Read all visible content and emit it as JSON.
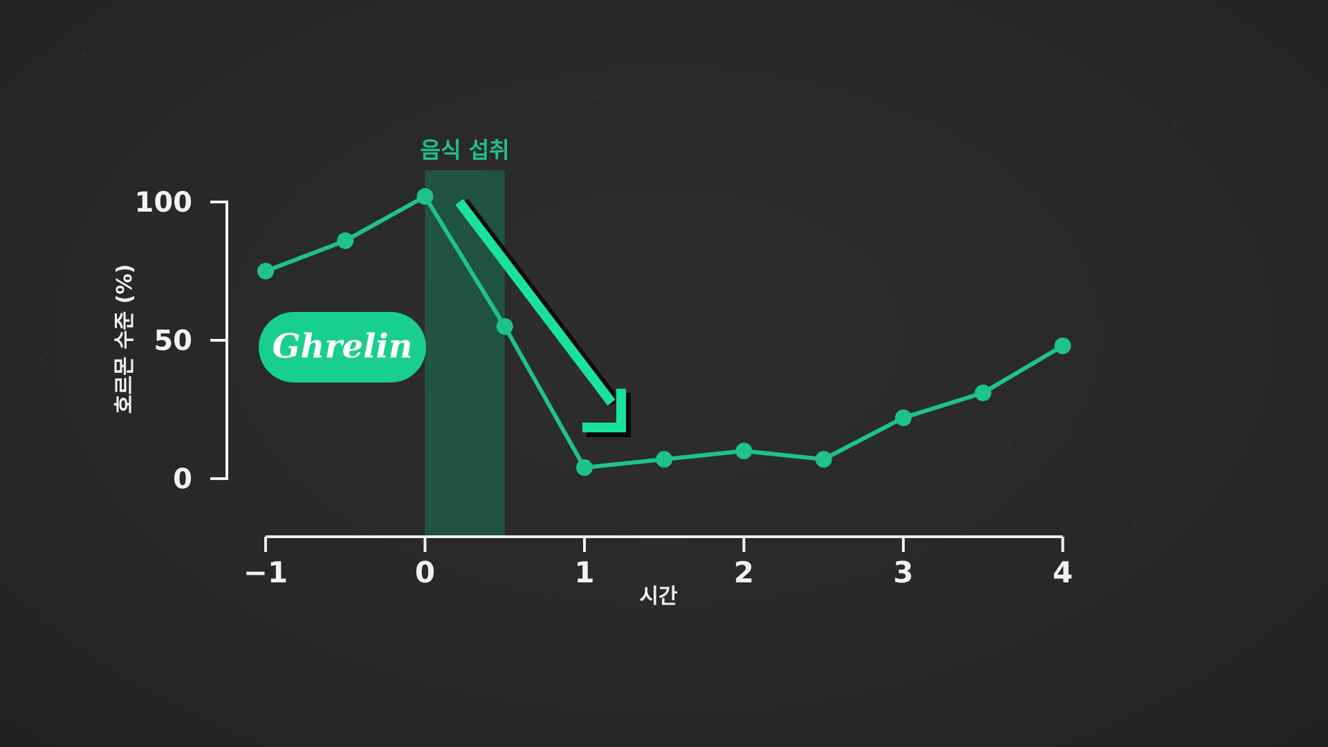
{
  "chart_data": {
    "type": "line",
    "ylabel": "호르몬 수준 (%)",
    "xlabel": "시간",
    "yticks": [
      "0",
      "50",
      "100"
    ],
    "ytick_values": [
      0,
      50,
      100
    ],
    "xticks": [
      "−1",
      "0",
      "1",
      "2",
      "3",
      "4"
    ],
    "xtick_values": [
      -1,
      0,
      1,
      2,
      3,
      4
    ],
    "xlim": [
      -1,
      4
    ],
    "ylim": [
      0,
      100
    ],
    "series": [
      {
        "name": "Ghrelin",
        "x": [
          -1,
          -0.5,
          0,
          0.5,
          1,
          1.5,
          2,
          2.5,
          3,
          3.5,
          4
        ],
        "y": [
          75,
          86,
          102,
          55,
          4,
          7,
          10,
          7,
          22,
          31,
          48
        ]
      }
    ],
    "highlight_region": {
      "label": "음식 섭취",
      "x_start": 0,
      "x_end": 0.5
    },
    "series_badge": "Ghrelin",
    "colors": {
      "line": "#1ec38b",
      "accent": "#19e39a",
      "band": "#1f5a44",
      "axis": "#f2f2f2",
      "background": "#2a2a2a"
    },
    "annotation": "down-arrow"
  }
}
